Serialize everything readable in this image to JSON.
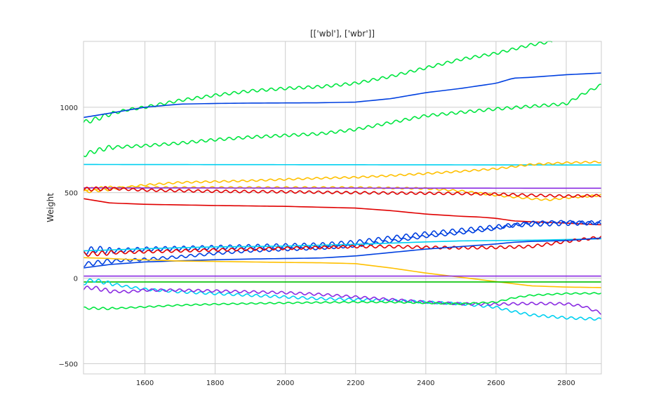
{
  "chart_data": {
    "type": "line",
    "title": "[['wbl'], ['wbr']]",
    "xlabel": "",
    "ylabel": "Weight",
    "xlim": [
      1425,
      2900
    ],
    "ylim": [
      -560,
      1385
    ],
    "xticks": [
      1600,
      1800,
      2000,
      2200,
      2400,
      2600,
      2800
    ],
    "yticks": [
      -500,
      0,
      500,
      1000
    ],
    "grid": true,
    "series": [
      {
        "color": "#00e640",
        "noise": 8,
        "x": [
          1425,
          1460,
          1500,
          1550,
          1600,
          1700,
          1800,
          1900,
          2000,
          2100,
          2200,
          2300,
          2400,
          2500,
          2600,
          2700,
          2760
        ],
        "y": [
          910,
          930,
          960,
          985,
          1000,
          1040,
          1070,
          1095,
          1110,
          1120,
          1140,
          1180,
          1230,
          1280,
          1315,
          1365,
          1385
        ]
      },
      {
        "color": "#0040e0",
        "noise": 0,
        "x": [
          1425,
          1500,
          1600,
          1700,
          1800,
          1900,
          2000,
          2100,
          2200,
          2300,
          2400,
          2500,
          2600,
          2650,
          2700,
          2800,
          2900
        ],
        "y": [
          940,
          965,
          1000,
          1018,
          1022,
          1024,
          1025,
          1026,
          1030,
          1050,
          1085,
          1110,
          1140,
          1170,
          1175,
          1190,
          1200
        ]
      },
      {
        "color": "#00e640",
        "noise": 8,
        "x": [
          1425,
          1460,
          1500,
          1600,
          1700,
          1800,
          1900,
          2000,
          2100,
          2200,
          2300,
          2400,
          2500,
          2600,
          2700,
          2800,
          2850,
          2900
        ],
        "y": [
          720,
          745,
          765,
          775,
          790,
          810,
          825,
          835,
          845,
          870,
          910,
          950,
          970,
          990,
          1005,
          1020,
          1080,
          1130
        ]
      },
      {
        "color": "#00d0f0",
        "noise": 0,
        "x": [
          1425,
          2900
        ],
        "y": [
          665,
          662
        ]
      },
      {
        "color": "#ffc000",
        "noise": 5,
        "x": [
          1425,
          1500,
          1600,
          1700,
          1800,
          1900,
          2000,
          2100,
          2200,
          2300,
          2400,
          2500,
          2600,
          2700,
          2800,
          2900
        ],
        "y": [
          505,
          520,
          545,
          560,
          565,
          570,
          578,
          585,
          590,
          600,
          612,
          625,
          640,
          665,
          675,
          680
        ]
      },
      {
        "color": "#ffc000",
        "noise": 5,
        "x": [
          1425,
          1500,
          1600,
          1800,
          2000,
          2200,
          2400,
          2500,
          2600,
          2700,
          2750,
          2800,
          2900
        ],
        "y": [
          520,
          530,
          530,
          530,
          530,
          530,
          525,
          510,
          485,
          465,
          458,
          470,
          485
        ]
      },
      {
        "color": "#8a2be2",
        "noise": 0,
        "x": [
          1425,
          2900
        ],
        "y": [
          528,
          526
        ]
      },
      {
        "color": "#e00000",
        "noise": 7,
        "x": [
          1425,
          1500,
          1600,
          1800,
          2000,
          2200,
          2400,
          2500,
          2600,
          2700,
          2800,
          2900
        ],
        "y": [
          520,
          525,
          515,
          508,
          505,
          500,
          497,
          495,
          492,
          485,
          480,
          483
        ]
      },
      {
        "color": "#e00000",
        "noise": 0,
        "x": [
          1425,
          1500,
          1600,
          1800,
          2000,
          2200,
          2300,
          2400,
          2500,
          2550,
          2600,
          2650,
          2700,
          2800,
          2900
        ],
        "y": [
          465,
          440,
          432,
          425,
          420,
          410,
          395,
          375,
          362,
          358,
          350,
          335,
          330,
          322,
          312
        ]
      },
      {
        "color": "#0040e0",
        "noise": 12,
        "x": [
          1425,
          1460,
          1500,
          1600,
          1700,
          1800,
          1900,
          2000,
          2100,
          2200,
          2300,
          2400,
          2500,
          2600,
          2650,
          2700,
          2800,
          2900
        ],
        "y": [
          155,
          170,
          160,
          170,
          175,
          180,
          185,
          190,
          195,
          210,
          235,
          260,
          280,
          300,
          310,
          315,
          320,
          325
        ]
      },
      {
        "color": "#0040e0",
        "noise": 8,
        "x": [
          1425,
          1500,
          1600,
          1700,
          1800,
          1900,
          2000,
          2100,
          2200,
          2300,
          2400,
          2500,
          2600,
          2650,
          2700,
          2800,
          2900
        ],
        "y": [
          80,
          100,
          110,
          125,
          145,
          160,
          168,
          175,
          190,
          215,
          245,
          265,
          290,
          310,
          325,
          330,
          320
        ]
      },
      {
        "color": "#00d0f0",
        "noise": 0,
        "x": [
          1425,
          1500,
          1600,
          1700,
          1800,
          1900,
          2000,
          2100,
          2200,
          2300,
          2400,
          2500,
          2600,
          2700,
          2800,
          2900
        ],
        "y": [
          160,
          165,
          172,
          178,
          183,
          185,
          188,
          193,
          198,
          205,
          212,
          218,
          220,
          222,
          226,
          230
        ]
      },
      {
        "color": "#e00000",
        "noise": 8,
        "x": [
          1425,
          1500,
          1600,
          1700,
          1800,
          1900,
          2000,
          2100,
          2200,
          2300,
          2400,
          2500,
          2600,
          2700,
          2800,
          2900
        ],
        "y": [
          140,
          148,
          155,
          160,
          165,
          170,
          175,
          180,
          185,
          185,
          180,
          178,
          180,
          185,
          215,
          240
        ]
      },
      {
        "color": "#0040e0",
        "noise": 0,
        "x": [
          1425,
          1500,
          1600,
          1800,
          1900,
          2000,
          2100,
          2200,
          2300,
          2400,
          2500,
          2600,
          2650,
          2700,
          2800,
          2900
        ],
        "y": [
          60,
          80,
          95,
          108,
          112,
          115,
          118,
          130,
          150,
          170,
          185,
          200,
          210,
          215,
          220,
          235
        ]
      },
      {
        "color": "#ffc000",
        "noise": 0,
        "x": [
          1425,
          1500,
          1550,
          1600,
          1700,
          1800,
          1900,
          2000,
          2100,
          2200,
          2300,
          2400,
          2500,
          2600,
          2700,
          2800,
          2900
        ],
        "y": [
          120,
          115,
          110,
          108,
          100,
          98,
          95,
          92,
          90,
          85,
          60,
          30,
          5,
          -20,
          -45,
          -52,
          -55
        ]
      },
      {
        "color": "#8a2be2",
        "noise": 0,
        "x": [
          1425,
          2900
        ],
        "y": [
          12,
          12
        ]
      },
      {
        "color": "#00c000",
        "noise": 0,
        "x": [
          1425,
          2900
        ],
        "y": [
          -22,
          -22
        ]
      },
      {
        "color": "#00d0f0",
        "noise": 7,
        "x": [
          1425,
          1450,
          1500,
          1550,
          1600,
          1700,
          1800,
          1900,
          2000,
          2100,
          2200,
          2300,
          2400,
          2500,
          2600,
          2650,
          2700,
          2800,
          2900
        ],
        "y": [
          -30,
          -10,
          -30,
          -50,
          -65,
          -80,
          -90,
          -100,
          -110,
          -120,
          -125,
          -130,
          -140,
          -150,
          -170,
          -195,
          -215,
          -232,
          -240
        ]
      },
      {
        "color": "#8a2be2",
        "noise": 7,
        "x": [
          1425,
          1450,
          1500,
          1550,
          1600,
          1700,
          1800,
          1900,
          2000,
          2100,
          2200,
          2300,
          2400,
          2500,
          2600,
          2700,
          2800,
          2850,
          2900
        ],
        "y": [
          -60,
          -55,
          -75,
          -80,
          -70,
          -70,
          -75,
          -80,
          -85,
          -95,
          -110,
          -125,
          -140,
          -150,
          -152,
          -148,
          -150,
          -165,
          -205
        ]
      },
      {
        "color": "#00e640",
        "noise": 4,
        "x": [
          1425,
          1500,
          1600,
          1700,
          1800,
          1900,
          2000,
          2100,
          2200,
          2300,
          2400,
          2500,
          2600,
          2650,
          2700,
          2800,
          2900
        ],
        "y": [
          -175,
          -178,
          -168,
          -158,
          -152,
          -148,
          -145,
          -142,
          -140,
          -140,
          -145,
          -150,
          -140,
          -115,
          -100,
          -90,
          -88
        ]
      }
    ]
  }
}
